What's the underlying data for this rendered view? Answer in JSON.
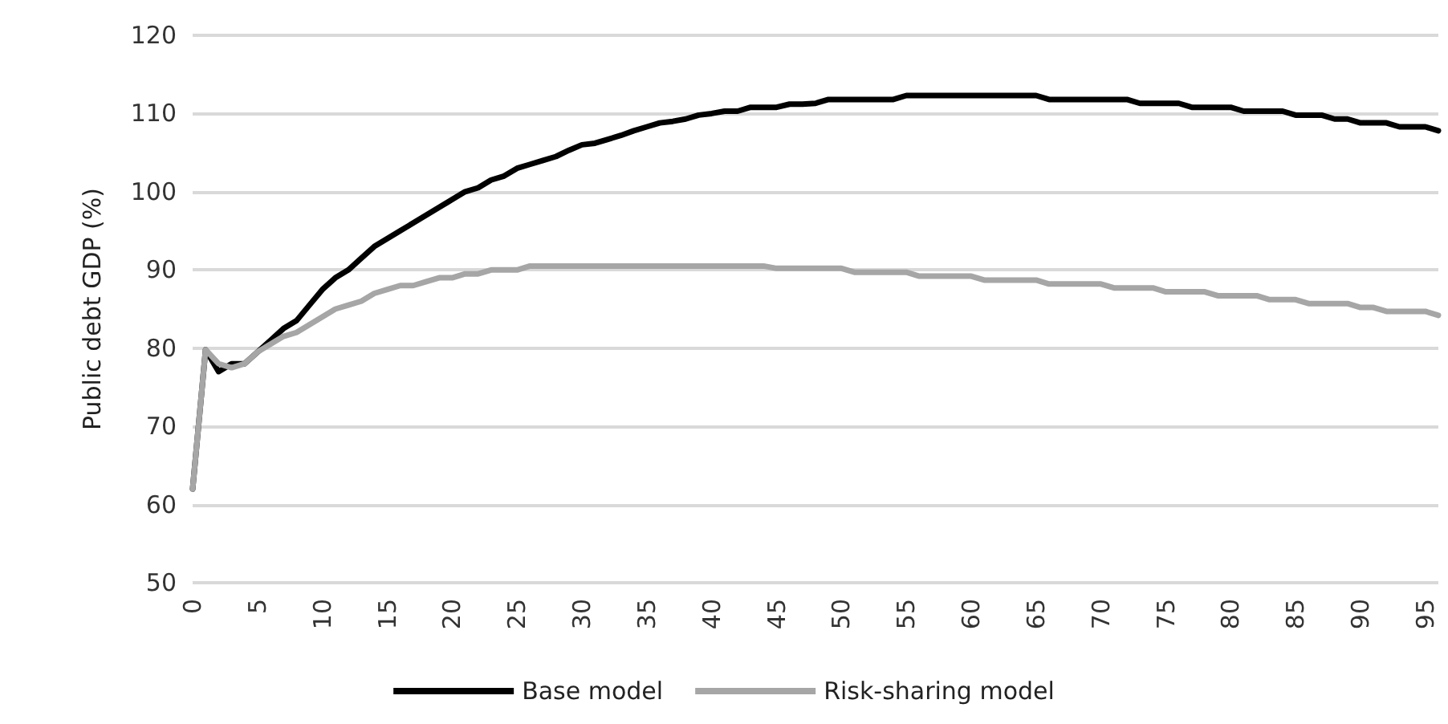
{
  "chart_data": {
    "type": "line",
    "ylabel": "Public debt GDP (%)",
    "x": [
      0,
      1,
      2,
      3,
      4,
      5,
      6,
      7,
      8,
      9,
      10,
      11,
      12,
      13,
      14,
      15,
      16,
      17,
      18,
      19,
      20,
      21,
      22,
      23,
      24,
      25,
      26,
      27,
      28,
      29,
      30,
      31,
      32,
      33,
      34,
      35,
      36,
      37,
      38,
      39,
      40,
      41,
      42,
      43,
      44,
      45,
      46,
      47,
      48,
      49,
      50,
      51,
      52,
      53,
      54,
      55,
      56,
      57,
      58,
      59,
      60,
      61,
      62,
      63,
      64,
      65,
      66,
      67,
      68,
      69,
      70,
      71,
      72,
      73,
      74,
      75,
      76,
      77,
      78,
      79,
      80,
      81,
      82,
      83,
      84,
      85,
      86,
      87,
      88,
      89,
      90,
      91,
      92,
      93,
      94,
      95,
      96
    ],
    "xlim": [
      0,
      96
    ],
    "xticks": [
      0,
      5,
      10,
      15,
      20,
      25,
      30,
      35,
      40,
      45,
      50,
      55,
      60,
      65,
      70,
      75,
      80,
      85,
      90,
      95
    ],
    "ylim": [
      50,
      120
    ],
    "yticks": [
      50,
      60,
      70,
      80,
      90,
      100,
      110,
      120
    ],
    "grid": "y",
    "legend": "bottom",
    "marker": "none",
    "line_style": "solid",
    "series": [
      {
        "name": "Base model",
        "color": "#000000",
        "values": [
          62,
          79.8,
          77,
          78,
          78,
          79.5,
          81,
          82.5,
          83.5,
          85.5,
          87.5,
          89,
          90,
          91.5,
          93,
          94,
          95,
          96,
          97,
          98,
          99,
          100,
          100.5,
          101.5,
          102,
          103,
          103.5,
          104,
          104.5,
          105.3,
          106,
          106.2,
          106.7,
          107.2,
          107.8,
          108.3,
          108.8,
          109,
          109.3,
          109.8,
          110,
          110.3,
          110.3,
          110.8,
          110.8,
          110.8,
          111.2,
          111.2,
          111.3,
          111.8,
          111.8,
          111.8,
          111.8,
          111.8,
          111.8,
          112.3,
          112.3,
          112.3,
          112.3,
          112.3,
          112.3,
          112.3,
          112.3,
          112.3,
          112.3,
          112.3,
          111.8,
          111.8,
          111.8,
          111.8,
          111.8,
          111.8,
          111.8,
          111.3,
          111.3,
          111.3,
          111.3,
          110.8,
          110.8,
          110.8,
          110.8,
          110.3,
          110.3,
          110.3,
          110.3,
          109.8,
          109.8,
          109.8,
          109.3,
          109.3,
          108.8,
          108.8,
          108.8,
          108.3,
          108.3,
          108.3,
          107.8
        ]
      },
      {
        "name": "Risk-sharing model",
        "color": "#a6a6a6",
        "values": [
          62,
          79.8,
          78,
          77.5,
          78,
          79.5,
          80.5,
          81.5,
          82,
          83,
          84,
          85,
          85.5,
          86,
          87,
          87.5,
          88,
          88,
          88.5,
          89,
          89,
          89.5,
          89.5,
          90,
          90,
          90,
          90.5,
          90.5,
          90.5,
          90.5,
          90.5,
          90.5,
          90.5,
          90.5,
          90.5,
          90.5,
          90.5,
          90.5,
          90.5,
          90.5,
          90.5,
          90.5,
          90.5,
          90.5,
          90.5,
          90.2,
          90.2,
          90.2,
          90.2,
          90.2,
          90.2,
          89.7,
          89.7,
          89.7,
          89.7,
          89.7,
          89.2,
          89.2,
          89.2,
          89.2,
          89.2,
          88.7,
          88.7,
          88.7,
          88.7,
          88.7,
          88.2,
          88.2,
          88.2,
          88.2,
          88.2,
          87.7,
          87.7,
          87.7,
          87.7,
          87.2,
          87.2,
          87.2,
          87.2,
          86.7,
          86.7,
          86.7,
          86.7,
          86.2,
          86.2,
          86.2,
          85.7,
          85.7,
          85.7,
          85.7,
          85.2,
          85.2,
          84.7,
          84.7,
          84.7,
          84.7,
          84.2
        ]
      }
    ]
  }
}
